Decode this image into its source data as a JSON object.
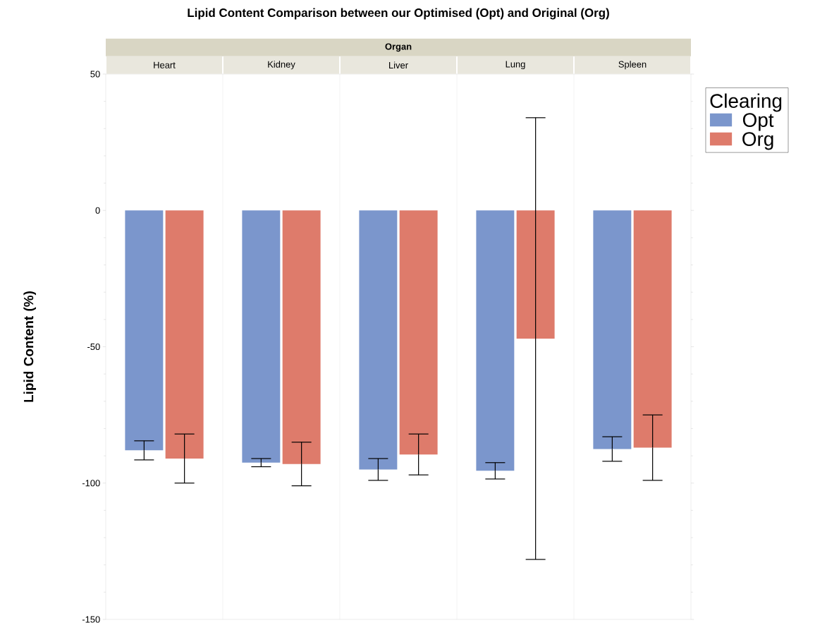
{
  "chart_data": {
    "type": "bar",
    "title": "Lipid Content Comparison between our Optimised (Opt) and Original (Org)",
    "xlabel": "Organ",
    "ylabel": "Lipid Content (%)",
    "legend_title": "Clearing",
    "categories": [
      "Heart",
      "Kidney",
      "Liver",
      "Lung",
      "Spleen"
    ],
    "series": [
      {
        "name": "Opt",
        "color": "#7b96cc",
        "values": [
          -88,
          -92.5,
          -95,
          -95.5,
          -87.5
        ],
        "errors": [
          3.5,
          1.5,
          4,
          3,
          4.5
        ]
      },
      {
        "name": "Org",
        "color": "#de7b6b",
        "values": [
          -91,
          -93,
          -89.5,
          -47,
          -87
        ],
        "errors": [
          9,
          8,
          7.5,
          81,
          12
        ]
      }
    ],
    "ylim": [
      -150,
      50
    ],
    "yticks": [
      -150,
      -100,
      -50,
      0,
      50
    ],
    "legend": "right"
  }
}
